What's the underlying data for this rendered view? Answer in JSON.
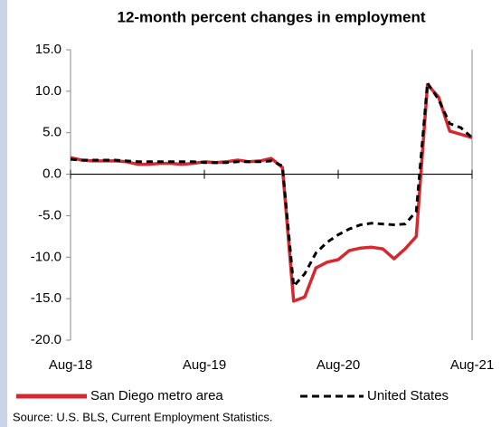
{
  "chart_data": {
    "type": "line",
    "title": "12-month percent changes in employment",
    "source": "Source: U.S. BLS, Current Employment Statistics.",
    "categories": [
      "Aug-18",
      null,
      null,
      null,
      null,
      null,
      null,
      null,
      null,
      null,
      null,
      null,
      "Aug-19",
      null,
      null,
      null,
      null,
      null,
      null,
      null,
      null,
      null,
      null,
      null,
      "Aug-20",
      null,
      null,
      null,
      null,
      null,
      null,
      null,
      null,
      null,
      null,
      null,
      "Aug-21"
    ],
    "series": [
      {
        "name": "San Diego metro area",
        "color": "#d42a2f",
        "dash": "solid",
        "values": [
          2.0,
          1.7,
          1.6,
          1.6,
          1.6,
          1.5,
          1.2,
          1.2,
          1.3,
          1.3,
          1.2,
          1.3,
          1.5,
          1.4,
          1.5,
          1.7,
          1.5,
          1.6,
          1.9,
          0.8,
          -15.3,
          -14.8,
          -11.3,
          -10.6,
          -10.3,
          -9.2,
          -8.9,
          -8.8,
          -9.0,
          -10.2,
          -9.0,
          -7.5,
          10.8,
          9.3,
          5.2,
          4.8,
          4.4
        ]
      },
      {
        "name": "United States",
        "color": "#000000",
        "dash": "dashed",
        "values": [
          1.8,
          1.7,
          1.7,
          1.7,
          1.7,
          1.6,
          1.5,
          1.5,
          1.5,
          1.5,
          1.5,
          1.5,
          1.4,
          1.4,
          1.4,
          1.5,
          1.5,
          1.5,
          1.6,
          1.0,
          -13.5,
          -12.0,
          -9.5,
          -8.2,
          -7.3,
          -6.6,
          -6.1,
          -5.9,
          -6.0,
          -6.1,
          -6.0,
          -4.5,
          11.0,
          9.0,
          6.1,
          5.6,
          4.4
        ]
      }
    ],
    "ylim": [
      -20,
      15
    ],
    "yticks": [
      {
        "value": -20,
        "label": "-20.0"
      },
      {
        "value": -15,
        "label": "-15.0"
      },
      {
        "value": -10,
        "label": "-10.0"
      },
      {
        "value": -5,
        "label": "-5.0"
      },
      {
        "value": 0,
        "label": "0.0"
      },
      {
        "value": 5,
        "label": "5.0"
      },
      {
        "value": 10,
        "label": "10.0"
      },
      {
        "value": 15,
        "label": "15.0"
      }
    ],
    "legend": "bottom"
  }
}
